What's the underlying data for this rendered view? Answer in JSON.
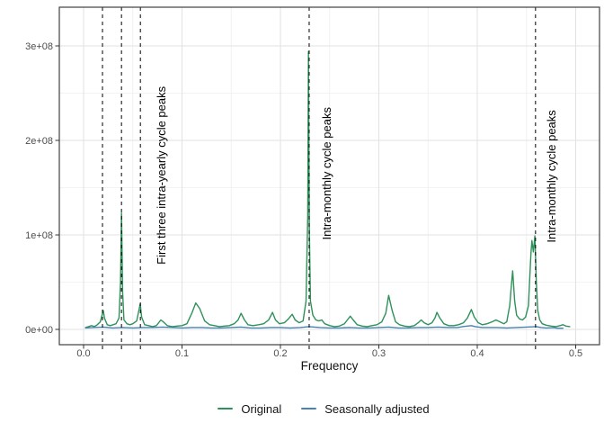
{
  "chart_data": {
    "type": "line",
    "title": "",
    "xlabel": "Frequency",
    "ylabel": "",
    "xlim": [
      0,
      0.5
    ],
    "ylim": [
      0,
      340000000
    ],
    "grid": "on",
    "legend_position": "bottom",
    "value_scale": 100000000.0,
    "x_tick_labels": [
      "0.0",
      "0.1",
      "0.2",
      "0.3",
      "0.4",
      "0.5"
    ],
    "x_tick_values": [
      0,
      0.1,
      0.2,
      0.3,
      0.4,
      0.5
    ],
    "x_minor_values": [
      0.05,
      0.15,
      0.25,
      0.35,
      0.45
    ],
    "y_tick_labels": [
      "0e+00",
      "1e+08",
      "2e+08",
      "3e+08"
    ],
    "y_tick_values": [
      0,
      100000000.0,
      200000000.0,
      300000000.0
    ],
    "y_minor_values": [
      50000000.0,
      150000000.0,
      250000000.0
    ],
    "colors": {
      "original": "#2e915a",
      "seasonally_adjusted": "#4682b4",
      "grid_major": "#e2e2e2",
      "grid_minor": "#efefef",
      "panel_border": "#3f3f3f",
      "vline": "#000000"
    },
    "vlines": {
      "x": [
        0.0192,
        0.0385,
        0.0577,
        0.2292,
        0.4592
      ],
      "style": "dashed",
      "color": "#000000",
      "note": "peak frequency markers"
    },
    "annotations": [
      {
        "text": "First three intra-yearly cycle peaks",
        "x": 0.0831,
        "y": 1.63,
        "angle": 90
      },
      {
        "text": "Intra-monthly cycle peaks",
        "x": 0.2511,
        "y": 1.65,
        "angle": 90
      },
      {
        "text": "Intra-monthly cycle peaks",
        "x": 0.4795,
        "y": 1.62,
        "angle": 90
      }
    ],
    "series": [
      {
        "name": "Original",
        "color": "#2e915a",
        "points": [
          [
            0.002,
            0.02
          ],
          [
            0.005,
            0.03
          ],
          [
            0.008,
            0.04
          ],
          [
            0.011,
            0.03
          ],
          [
            0.014,
            0.05
          ],
          [
            0.017,
            0.08
          ],
          [
            0.019,
            0.16
          ],
          [
            0.02,
            0.2
          ],
          [
            0.0212,
            0.12
          ],
          [
            0.024,
            0.05
          ],
          [
            0.027,
            0.04
          ],
          [
            0.03,
            0.05
          ],
          [
            0.033,
            0.06
          ],
          [
            0.036,
            0.12
          ],
          [
            0.0375,
            0.5
          ],
          [
            0.0385,
            1.23
          ],
          [
            0.0396,
            0.4
          ],
          [
            0.041,
            0.1
          ],
          [
            0.044,
            0.06
          ],
          [
            0.047,
            0.05
          ],
          [
            0.05,
            0.06
          ],
          [
            0.054,
            0.09
          ],
          [
            0.0575,
            0.27
          ],
          [
            0.059,
            0.13
          ],
          [
            0.062,
            0.05
          ],
          [
            0.066,
            0.04
          ],
          [
            0.07,
            0.03
          ],
          [
            0.074,
            0.04
          ],
          [
            0.0785,
            0.1
          ],
          [
            0.081,
            0.08
          ],
          [
            0.085,
            0.04
          ],
          [
            0.09,
            0.03
          ],
          [
            0.095,
            0.035
          ],
          [
            0.1,
            0.04
          ],
          [
            0.105,
            0.06
          ],
          [
            0.11,
            0.17
          ],
          [
            0.114,
            0.28
          ],
          [
            0.118,
            0.22
          ],
          [
            0.123,
            0.09
          ],
          [
            0.128,
            0.05
          ],
          [
            0.133,
            0.04
          ],
          [
            0.138,
            0.03
          ],
          [
            0.143,
            0.035
          ],
          [
            0.148,
            0.04
          ],
          [
            0.153,
            0.06
          ],
          [
            0.157,
            0.1
          ],
          [
            0.16,
            0.17
          ],
          [
            0.1635,
            0.1
          ],
          [
            0.167,
            0.05
          ],
          [
            0.172,
            0.04
          ],
          [
            0.178,
            0.05
          ],
          [
            0.183,
            0.06
          ],
          [
            0.188,
            0.1
          ],
          [
            0.192,
            0.18
          ],
          [
            0.195,
            0.1
          ],
          [
            0.199,
            0.06
          ],
          [
            0.204,
            0.07
          ],
          [
            0.208,
            0.11
          ],
          [
            0.212,
            0.16
          ],
          [
            0.215,
            0.1
          ],
          [
            0.219,
            0.07
          ],
          [
            0.223,
            0.09
          ],
          [
            0.226,
            0.3
          ],
          [
            0.2278,
            1.2
          ],
          [
            0.2285,
            2.94
          ],
          [
            0.2293,
            1.1
          ],
          [
            0.2305,
            0.3
          ],
          [
            0.233,
            0.15
          ],
          [
            0.236,
            0.1
          ],
          [
            0.239,
            0.09
          ],
          [
            0.242,
            0.1
          ],
          [
            0.245,
            0.06
          ],
          [
            0.25,
            0.04
          ],
          [
            0.255,
            0.03
          ],
          [
            0.26,
            0.035
          ],
          [
            0.265,
            0.06
          ],
          [
            0.268,
            0.1
          ],
          [
            0.271,
            0.14
          ],
          [
            0.274,
            0.1
          ],
          [
            0.278,
            0.05
          ],
          [
            0.283,
            0.035
          ],
          [
            0.288,
            0.03
          ],
          [
            0.293,
            0.04
          ],
          [
            0.298,
            0.05
          ],
          [
            0.303,
            0.08
          ],
          [
            0.307,
            0.17
          ],
          [
            0.31,
            0.36
          ],
          [
            0.3135,
            0.2
          ],
          [
            0.317,
            0.08
          ],
          [
            0.321,
            0.05
          ],
          [
            0.326,
            0.035
          ],
          [
            0.331,
            0.03
          ],
          [
            0.336,
            0.04
          ],
          [
            0.34,
            0.07
          ],
          [
            0.343,
            0.1
          ],
          [
            0.346,
            0.07
          ],
          [
            0.35,
            0.05
          ],
          [
            0.354,
            0.07
          ],
          [
            0.357,
            0.12
          ],
          [
            0.359,
            0.18
          ],
          [
            0.362,
            0.12
          ],
          [
            0.366,
            0.06
          ],
          [
            0.371,
            0.04
          ],
          [
            0.376,
            0.04
          ],
          [
            0.381,
            0.05
          ],
          [
            0.386,
            0.07
          ],
          [
            0.39,
            0.12
          ],
          [
            0.394,
            0.21
          ],
          [
            0.397,
            0.13
          ],
          [
            0.401,
            0.07
          ],
          [
            0.405,
            0.05
          ],
          [
            0.41,
            0.06
          ],
          [
            0.415,
            0.08
          ],
          [
            0.419,
            0.1
          ],
          [
            0.423,
            0.08
          ],
          [
            0.427,
            0.06
          ],
          [
            0.43,
            0.08
          ],
          [
            0.433,
            0.25
          ],
          [
            0.4345,
            0.45
          ],
          [
            0.436,
            0.62
          ],
          [
            0.438,
            0.3
          ],
          [
            0.44,
            0.15
          ],
          [
            0.443,
            0.11
          ],
          [
            0.446,
            0.1
          ],
          [
            0.449,
            0.13
          ],
          [
            0.452,
            0.25
          ],
          [
            0.4545,
            0.8
          ],
          [
            0.4555,
            0.94
          ],
          [
            0.457,
            0.82
          ],
          [
            0.4585,
            0.99
          ],
          [
            0.46,
            0.5
          ],
          [
            0.4615,
            0.2
          ],
          [
            0.4635,
            0.1
          ],
          [
            0.466,
            0.06
          ],
          [
            0.47,
            0.045
          ],
          [
            0.475,
            0.035
          ],
          [
            0.48,
            0.03
          ],
          [
            0.484,
            0.04
          ],
          [
            0.487,
            0.05
          ],
          [
            0.49,
            0.035
          ],
          [
            0.494,
            0.03
          ]
        ]
      },
      {
        "name": "Seasonally adjusted",
        "color": "#4682b4",
        "points": [
          [
            0.002,
            0.015
          ],
          [
            0.01,
            0.02
          ],
          [
            0.02,
            0.025
          ],
          [
            0.03,
            0.015
          ],
          [
            0.04,
            0.02
          ],
          [
            0.05,
            0.015
          ],
          [
            0.06,
            0.02
          ],
          [
            0.07,
            0.02
          ],
          [
            0.08,
            0.025
          ],
          [
            0.09,
            0.02
          ],
          [
            0.1,
            0.015
          ],
          [
            0.11,
            0.02
          ],
          [
            0.12,
            0.02
          ],
          [
            0.13,
            0.015
          ],
          [
            0.14,
            0.015
          ],
          [
            0.15,
            0.02
          ],
          [
            0.16,
            0.025
          ],
          [
            0.17,
            0.015
          ],
          [
            0.18,
            0.015
          ],
          [
            0.19,
            0.02
          ],
          [
            0.2,
            0.02
          ],
          [
            0.21,
            0.015
          ],
          [
            0.22,
            0.02
          ],
          [
            0.229,
            0.03
          ],
          [
            0.24,
            0.02
          ],
          [
            0.25,
            0.015
          ],
          [
            0.26,
            0.015
          ],
          [
            0.27,
            0.02
          ],
          [
            0.28,
            0.015
          ],
          [
            0.29,
            0.015
          ],
          [
            0.3,
            0.02
          ],
          [
            0.31,
            0.025
          ],
          [
            0.32,
            0.015
          ],
          [
            0.33,
            0.015
          ],
          [
            0.34,
            0.02
          ],
          [
            0.35,
            0.02
          ],
          [
            0.36,
            0.025
          ],
          [
            0.37,
            0.02
          ],
          [
            0.38,
            0.02
          ],
          [
            0.385,
            0.03
          ],
          [
            0.39,
            0.035
          ],
          [
            0.394,
            0.04
          ],
          [
            0.398,
            0.03
          ],
          [
            0.405,
            0.02
          ],
          [
            0.42,
            0.02
          ],
          [
            0.43,
            0.015
          ],
          [
            0.44,
            0.02
          ],
          [
            0.45,
            0.025
          ],
          [
            0.46,
            0.03
          ],
          [
            0.465,
            0.02
          ],
          [
            0.47,
            0.015
          ],
          [
            0.478,
            0.018
          ],
          [
            0.481,
            0.012
          ],
          [
            0.487,
            0.012
          ]
        ]
      }
    ]
  }
}
